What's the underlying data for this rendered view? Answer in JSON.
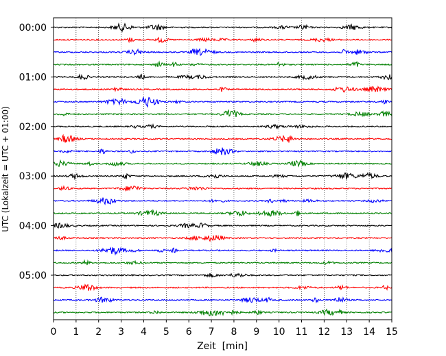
{
  "chart_data": {
    "type": "line",
    "subtype": "helicorder",
    "xlabel": "Zeit  [min]",
    "ylabel": "UTC (Lokalzeit = UTC + 01:00)",
    "xlim": [
      0,
      15
    ],
    "x_ticks": [
      "0",
      "1",
      "2",
      "3",
      "4",
      "5",
      "6",
      "7",
      "8",
      "9",
      "10",
      "11",
      "12",
      "13",
      "14",
      "15"
    ],
    "y_tick_labels": [
      "00:00",
      "01:00",
      "02:00",
      "03:00",
      "04:00",
      "05:00"
    ],
    "trace_count": 24,
    "trace_interval_minutes": 15,
    "grid": "vertical dotted lines at each minute",
    "trace_colors": [
      "#000000",
      "#ff0000",
      "#0000ff",
      "#008000"
    ]
  }
}
